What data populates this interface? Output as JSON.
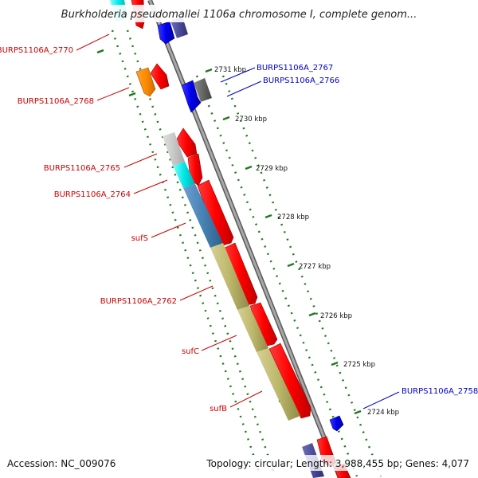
{
  "header": {
    "title": "Burkholderia pseudomallei 1106a chromosome I, complete genom..."
  },
  "footer": {
    "accession": "Accession: NC_009076",
    "summary": "Topology: circular; Length: 3,988,455 bp; Genes: 4,077"
  },
  "colors": {
    "left_label": "#cc0000",
    "right_label": "#0000cc",
    "backbone": "#888888",
    "dots": "#1f7a1f",
    "red_gene": "#ff0000",
    "blue_gene": "#0000ee"
  },
  "scale": {
    "ticks": [
      "2731 kbp",
      "2730 kbp",
      "2729 kbp",
      "2728 kbp",
      "2727 kbp",
      "2726 kbp",
      "2725 kbp",
      "2724 kbp"
    ]
  },
  "labels": {
    "left": [
      "BURPS1106A_2770",
      "BURPS1106A_2768",
      "BURPS1106A_2765",
      "BURPS1106A_2764",
      "sufS",
      "BURPS1106A_2762",
      "sufC",
      "sufB"
    ],
    "right": [
      "BURPS1106A_2767",
      "BURPS1106A_2766",
      "BURPS1106A_2758"
    ]
  }
}
